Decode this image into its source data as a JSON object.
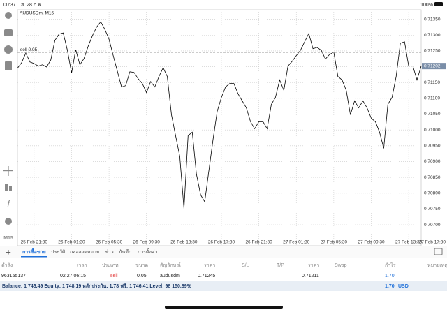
{
  "status_bar": {
    "time": "00:37",
    "date": "ส. 28 ก.พ.",
    "battery": "100%"
  },
  "toolbar": {
    "timeframe": "M15"
  },
  "chart_data": {
    "type": "line",
    "title": "AUDUSDm, M15",
    "color": "#000000",
    "values": [
      0.71195,
      0.71213,
      0.71243,
      0.71215,
      0.7121,
      0.71202,
      0.71206,
      0.71199,
      0.71221,
      0.71283,
      0.71303,
      0.71307,
      0.71252,
      0.7118,
      0.71254,
      0.71206,
      0.71226,
      0.71265,
      0.71298,
      0.71325,
      0.71342,
      0.71318,
      0.71287,
      0.71235,
      0.71186,
      0.71136,
      0.7114,
      0.71184,
      0.71182,
      0.71162,
      0.71147,
      0.71118,
      0.71153,
      0.71136,
      0.71169,
      0.71197,
      0.71169,
      0.71048,
      0.70982,
      0.70916,
      0.70751,
      0.70982,
      0.70993,
      0.70861,
      0.70795,
      0.70773,
      0.70872,
      0.70971,
      0.71059,
      0.71103,
      0.71136,
      0.71147,
      0.71147,
      0.71114,
      0.71092,
      0.7107,
      0.71026,
      0.71004,
      0.71026,
      0.71026,
      0.71004,
      0.71081,
      0.71103,
      0.71158,
      0.71125,
      0.71202,
      0.71217,
      0.71235,
      0.71252,
      0.71279,
      0.71305,
      0.71257,
      0.71261,
      0.71252,
      0.71224,
      0.71239,
      0.71246,
      0.71169,
      0.71158,
      0.71125,
      0.71048,
      0.71092,
      0.7107,
      0.71092,
      0.7107,
      0.71037,
      0.71026,
      0.70993,
      0.70942,
      0.71081,
      0.71103,
      0.71169,
      0.71274,
      0.71279,
      0.71202,
      0.71202,
      0.71158,
      0.71202
    ],
    "xlim": [
      0,
      97
    ],
    "xticks": [
      {
        "value": 4,
        "label": "25 Feb 21:30"
      },
      {
        "value": 13,
        "label": "26 Feb 01:30"
      },
      {
        "value": 22,
        "label": "26 Feb 05:30"
      },
      {
        "value": 31,
        "label": "26 Feb 09:30"
      },
      {
        "value": 40,
        "label": "26 Feb 13:30"
      },
      {
        "value": 49,
        "label": "26 Feb 17:30"
      },
      {
        "value": 58,
        "label": "26 Feb 21:30"
      },
      {
        "value": 67,
        "label": "27 Feb 01:30"
      },
      {
        "value": 76,
        "label": "27 Feb 05:30"
      },
      {
        "value": 85,
        "label": "27 Feb 09:30"
      },
      {
        "value": 94,
        "label": "27 Feb 13:30"
      },
      {
        "value": 103,
        "label": "27 Feb 17:30"
      }
    ],
    "ylim": [
      0.70634,
      0.7138
    ],
    "yticks": [
      {
        "value": 0.7135,
        "label": "0.71350"
      },
      {
        "value": 0.713,
        "label": "0.71300"
      },
      {
        "value": 0.7125,
        "label": "0.71250"
      },
      {
        "value": 0.712,
        "label": "0.71200"
      },
      {
        "value": 0.7115,
        "label": "0.71150"
      },
      {
        "value": 0.711,
        "label": "0.71100"
      },
      {
        "value": 0.7105,
        "label": "0.71050"
      },
      {
        "value": 0.71,
        "label": "0.71000"
      },
      {
        "value": 0.7095,
        "label": "0.70950"
      },
      {
        "value": 0.709,
        "label": "0.70900"
      },
      {
        "value": 0.7085,
        "label": "0.70850"
      },
      {
        "value": 0.708,
        "label": "0.70800"
      },
      {
        "value": 0.7075,
        "label": "0.70750"
      },
      {
        "value": 0.707,
        "label": "0.70700"
      }
    ],
    "grid": true,
    "current_price": 0.71202,
    "order_line": {
      "label": "sell 0.05",
      "price": 0.71245
    }
  },
  "tabs": [
    "การซื้อขาย",
    "ประวัติ",
    "กล่องจดหมาย",
    "ข่าว",
    "บันทึก",
    "การตั้งค่า"
  ],
  "table": {
    "columns": [
      "คำสั่ง",
      "เวลา",
      "ประเภท",
      "ขนาด",
      "สัญลักษณ์",
      "ราคา",
      "S/L",
      "T/P",
      "ราคา",
      "Swap",
      "กำไร",
      "หมายเหตุ"
    ],
    "rows": [
      [
        "963155137",
        "02.27 06:15",
        "sell",
        "0.05",
        "audusdm",
        "0.71245",
        "",
        "",
        "0.71211",
        "",
        "1.70",
        ""
      ]
    ]
  },
  "summary": {
    "text": "Balance: 1 746.49 Equity: 1 748.19 หลักประกัน: 1.78 ฟรี: 1 746.41 Level: 98 150.89%",
    "profit": "1.70",
    "currency": "USD"
  }
}
